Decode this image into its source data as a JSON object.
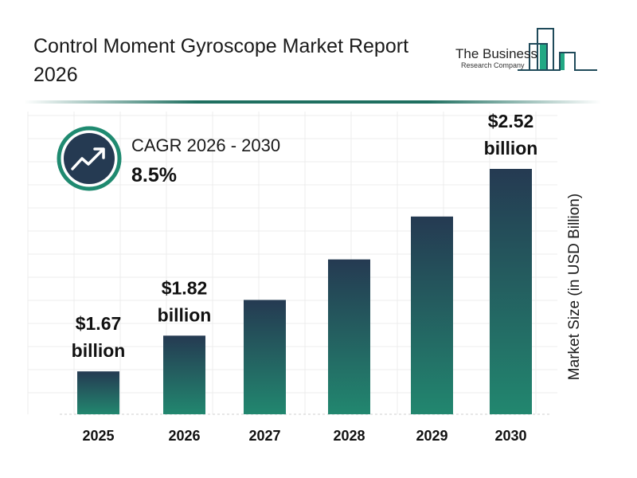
{
  "header": {
    "title": "Control Moment Gyroscope Market Report 2026"
  },
  "logo": {
    "line1": "The Business",
    "line2": "Research Company"
  },
  "cagr": {
    "label": "CAGR 2026 - 2030",
    "value": "8.5%",
    "icon": "trending-up-icon"
  },
  "colors": {
    "bar_top": "#253a52",
    "bar_bottom": "#22876f",
    "accent": "#1f8a70"
  },
  "chart_data": {
    "type": "bar",
    "title": "Control Moment Gyroscope Market Report 2026",
    "categories": [
      "2025",
      "2026",
      "2027",
      "2028",
      "2029",
      "2030"
    ],
    "values": [
      1.67,
      1.82,
      1.97,
      2.14,
      2.32,
      2.52
    ],
    "data_labels": [
      {
        "index": 0,
        "line1": "$1.67",
        "line2": "billion"
      },
      {
        "index": 1,
        "line1": "$1.82",
        "line2": "billion"
      },
      {
        "index": 5,
        "line1": "$2.52",
        "line2": "billion"
      }
    ],
    "xlabel": "",
    "ylabel": "Market Size (in USD Billion)",
    "grid": true
  }
}
